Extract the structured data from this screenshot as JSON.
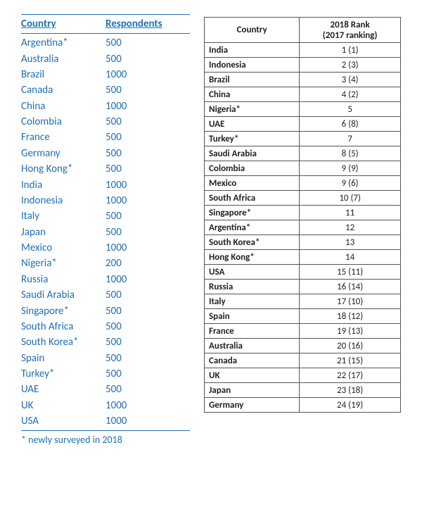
{
  "left": {
    "header": {
      "col1": "Country",
      "col2": "Respondents"
    },
    "rows": [
      {
        "country": "Argentina*",
        "respondents": "500"
      },
      {
        "country": "Australia",
        "respondents": "500"
      },
      {
        "country": "Brazil",
        "respondents": "1000"
      },
      {
        "country": "Canada",
        "respondents": "500"
      },
      {
        "country": "China",
        "respondents": "1000"
      },
      {
        "country": "Colombia",
        "respondents": "500"
      },
      {
        "country": "France",
        "respondents": "500"
      },
      {
        "country": "Germany",
        "respondents": "500"
      },
      {
        "country": "Hong Kong*",
        "respondents": "500"
      },
      {
        "country": "India",
        "respondents": "1000"
      },
      {
        "country": "Indonesia",
        "respondents": "1000"
      },
      {
        "country": "Italy",
        "respondents": "500"
      },
      {
        "country": "Japan",
        "respondents": "500"
      },
      {
        "country": "Mexico",
        "respondents": "1000"
      },
      {
        "country": "Nigeria*",
        "respondents": "200"
      },
      {
        "country": "Russia",
        "respondents": "1000"
      },
      {
        "country": "Saudi Arabia",
        "respondents": "500"
      },
      {
        "country": "Singapore*",
        "respondents": "500"
      },
      {
        "country": "South Africa",
        "respondents": "500"
      },
      {
        "country": "South Korea*",
        "respondents": "500"
      },
      {
        "country": "Spain",
        "respondents": "500"
      },
      {
        "country": "Turkey*",
        "respondents": "500"
      },
      {
        "country": "UAE",
        "respondents": "500"
      },
      {
        "country": "UK",
        "respondents": "1000"
      },
      {
        "country": "USA",
        "respondents": "1000"
      }
    ],
    "footnote": "* newly surveyed in 2018",
    "colors": {
      "text": "#1f6fb5",
      "border": "#1f6fb5"
    }
  },
  "right": {
    "header": {
      "col1": "Country",
      "col2_line1": "2018 Rank",
      "col2_line2": "(2017 ranking)"
    },
    "rows": [
      {
        "country": "India",
        "rank": "1 (1)"
      },
      {
        "country": "Indonesia",
        "rank": "2 (3)"
      },
      {
        "country": "Brazil",
        "rank": "3 (4)"
      },
      {
        "country": "China",
        "rank": "4 (2)"
      },
      {
        "country": "Nigeria*",
        "rank": "5"
      },
      {
        "country": "UAE",
        "rank": "6 (8)"
      },
      {
        "country": "Turkey*",
        "rank": "7"
      },
      {
        "country": "Saudi Arabia",
        "rank": "8 (5)"
      },
      {
        "country": "Colombia",
        "rank": "9 (9)"
      },
      {
        "country": "Mexico",
        "rank": "9 (6)"
      },
      {
        "country": "South Africa",
        "rank": "10 (7)"
      },
      {
        "country": "Singapore*",
        "rank": "11"
      },
      {
        "country": "Argentina*",
        "rank": "12"
      },
      {
        "country": "South Korea*",
        "rank": "13"
      },
      {
        "country": "Hong Kong*",
        "rank": "14"
      },
      {
        "country": "USA",
        "rank": "15 (11)"
      },
      {
        "country": "Russia",
        "rank": "16 (14)"
      },
      {
        "country": "Italy",
        "rank": "17 (10)"
      },
      {
        "country": "Spain",
        "rank": "18 (12)"
      },
      {
        "country": "France",
        "rank": "19 (13)"
      },
      {
        "country": "Australia",
        "rank": "20 (16)"
      },
      {
        "country": "Canada",
        "rank": "21 (15)"
      },
      {
        "country": "UK",
        "rank": "22 (17)"
      },
      {
        "country": "Japan",
        "rank": "23 (18)"
      },
      {
        "country": "Germany",
        "rank": "24 (19)"
      }
    ],
    "colors": {
      "text": "#222222",
      "border": "#555555"
    }
  }
}
